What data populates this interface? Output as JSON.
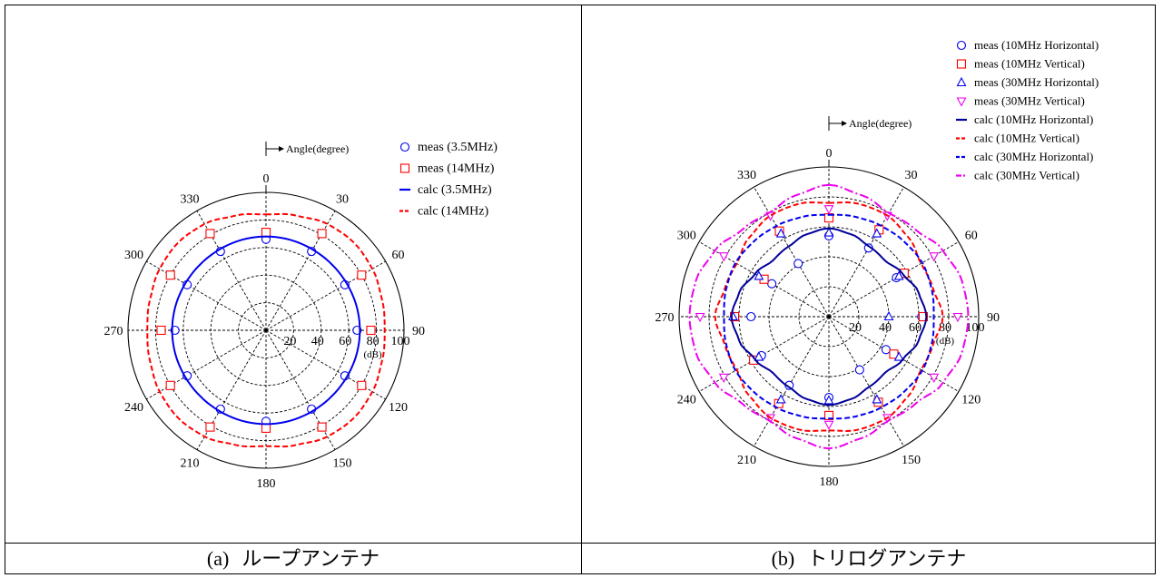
{
  "chart_data": [
    {
      "type": "polar",
      "panel_label": "(a)",
      "caption": "ループアンテナ",
      "angle_axis_label": "Angle(degree)",
      "angle_ticks": [
        "0",
        "30",
        "60",
        "90",
        "120",
        "150",
        "180",
        "210",
        "240",
        "270",
        "300",
        "330"
      ],
      "radial_ticks": [
        "20",
        "40",
        "60",
        "80",
        "100"
      ],
      "radial_unit": "(dB)",
      "r_range": [
        0,
        100
      ],
      "legend_position": "top-right",
      "legend": [
        "meas (3.5MHz)",
        "meas (14MHz)",
        "calc (3.5MHz)",
        "calc (14MHz)"
      ],
      "series": [
        {
          "name": "meas (3.5MHz)",
          "kind": "markers",
          "marker": "circle",
          "color": "#0000ee",
          "angles": [
            0,
            30,
            60,
            90,
            120,
            150,
            180,
            210,
            240,
            270,
            300,
            330
          ],
          "r": [
            66,
            66,
            66,
            66,
            66,
            66,
            66,
            66,
            66,
            66,
            66,
            66
          ]
        },
        {
          "name": "meas (14MHz)",
          "kind": "markers",
          "marker": "square",
          "color": "#ff0000",
          "angles": [
            0,
            30,
            60,
            90,
            120,
            150,
            180,
            210,
            240,
            270,
            300,
            330
          ],
          "r": [
            71,
            81,
            80,
            76,
            80,
            81,
            71,
            81,
            80,
            76,
            80,
            81
          ]
        },
        {
          "name": "calc (3.5MHz)",
          "kind": "line",
          "dash": "solid",
          "color": "#0000ee",
          "angles": [
            0,
            45,
            90,
            135,
            180,
            225,
            270,
            315,
            360
          ],
          "r": [
            68,
            67.5,
            68,
            67.5,
            68,
            67.5,
            68,
            67.5,
            68
          ]
        },
        {
          "name": "calc (14MHz)",
          "kind": "line",
          "dash": "dashed",
          "color": "#ff0000",
          "angles": [
            0,
            15,
            30,
            45,
            60,
            75,
            90,
            105,
            120,
            135,
            150,
            165,
            180,
            195,
            210,
            225,
            240,
            255,
            270,
            285,
            300,
            315,
            330,
            345,
            360
          ],
          "r": [
            84,
            86,
            89,
            90,
            89,
            87,
            86,
            87,
            89,
            90,
            89,
            86,
            84,
            86,
            89,
            90,
            89,
            87,
            86,
            87,
            89,
            90,
            89,
            86,
            84
          ]
        }
      ]
    },
    {
      "type": "polar",
      "panel_label": "(b)",
      "caption": "トリログアンテナ",
      "angle_axis_label": "Angle(degree)",
      "angle_ticks": [
        "0",
        "30",
        "60",
        "90",
        "120",
        "150",
        "180",
        "210",
        "240",
        "270",
        "300",
        "330"
      ],
      "radial_ticks": [
        "20",
        "40",
        "60",
        "80",
        "100"
      ],
      "radial_unit": "(dB)",
      "r_range": [
        0,
        100
      ],
      "legend_position": "top-right",
      "legend": [
        "meas (10MHz Horizontal)",
        "meas (10MHz Vertical)",
        "meas (30MHz Horizontal)",
        "meas (30MHz Vertical)",
        "calc (10MHz Horizontal)",
        "calc (10MHz Vertical)",
        "calc (30MHz Horizontal)",
        "calc (30MHz Vertical)"
      ],
      "series": [
        {
          "name": "meas (10MHz Horizontal)",
          "kind": "markers",
          "marker": "circle",
          "color": "#0000ee",
          "angles": [
            0,
            30,
            60,
            90,
            120,
            150,
            180,
            210,
            240,
            270,
            300,
            330
          ],
          "r": [
            54,
            53,
            52,
            62,
            44,
            41,
            54,
            53,
            52,
            52,
            44,
            41
          ]
        },
        {
          "name": "meas (10MHz Vertical)",
          "kind": "markers",
          "marker": "square",
          "color": "#ff0000",
          "angles": [
            0,
            30,
            60,
            90,
            120,
            150,
            180,
            210,
            240,
            270,
            300,
            330
          ],
          "r": [
            66,
            67,
            58,
            63,
            50,
            66,
            66,
            67,
            58,
            63,
            50,
            66
          ]
        },
        {
          "name": "meas (30MHz Horizontal)",
          "kind": "markers",
          "marker": "triangle",
          "color": "#0000ee",
          "angles": [
            0,
            30,
            60,
            90,
            120,
            150,
            180,
            210,
            240,
            270,
            300,
            330
          ],
          "r": [
            56,
            64,
            54,
            40,
            54,
            64,
            56,
            64,
            54,
            64,
            54,
            64
          ]
        },
        {
          "name": "meas (30MHz Vertical)",
          "kind": "markers",
          "marker": "triangle-down",
          "color": "#ee00ee",
          "angles": [
            0,
            30,
            60,
            90,
            120,
            150,
            180,
            210,
            240,
            270,
            300,
            330
          ],
          "r": [
            72,
            78,
            81,
            86,
            81,
            78,
            72,
            78,
            81,
            86,
            81,
            78
          ]
        },
        {
          "name": "calc (10MHz Horizontal)",
          "kind": "line",
          "dash": "solid",
          "color": "#000099",
          "angles": [
            0,
            15,
            30,
            45,
            60,
            75,
            90,
            105,
            120,
            135,
            150,
            165,
            180,
            195,
            210,
            225,
            240,
            255,
            270,
            285,
            300,
            315,
            330,
            345,
            360
          ],
          "r": [
            59,
            57,
            54,
            53,
            57,
            62,
            65,
            62,
            57,
            53,
            54,
            57,
            59,
            57,
            54,
            53,
            57,
            62,
            65,
            62,
            57,
            53,
            54,
            57,
            59
          ]
        },
        {
          "name": "calc (10MHz Vertical)",
          "kind": "line",
          "dash": "dashed",
          "color": "#ff0000",
          "angles": [
            0,
            15,
            30,
            45,
            60,
            75,
            90,
            105,
            120,
            135,
            150,
            165,
            180,
            195,
            210,
            225,
            240,
            255,
            270,
            285,
            300,
            315,
            330,
            345,
            360
          ],
          "r": [
            76,
            78,
            78,
            75,
            71,
            72,
            76,
            72,
            71,
            75,
            78,
            78,
            76,
            78,
            78,
            75,
            71,
            72,
            76,
            72,
            71,
            75,
            78,
            78,
            76
          ]
        },
        {
          "name": "calc (30MHz Horizontal)",
          "kind": "line",
          "dash": "dashed",
          "color": "#0000ee",
          "angles": [
            0,
            15,
            30,
            45,
            60,
            75,
            90,
            105,
            120,
            135,
            150,
            165,
            180,
            195,
            210,
            225,
            240,
            255,
            270,
            285,
            300,
            315,
            330,
            345,
            360
          ],
          "r": [
            68,
            69,
            70,
            71,
            72,
            71,
            70,
            71,
            72,
            71,
            70,
            69,
            68,
            69,
            70,
            71,
            72,
            71,
            70,
            71,
            72,
            71,
            70,
            69,
            68
          ]
        },
        {
          "name": "calc (30MHz Vertical)",
          "kind": "line",
          "dash": "dashdot",
          "color": "#ee00ee",
          "angles": [
            0,
            15,
            30,
            45,
            60,
            75,
            90,
            105,
            120,
            135,
            150,
            165,
            180,
            195,
            210,
            225,
            240,
            255,
            270,
            285,
            300,
            315,
            330,
            345,
            360
          ],
          "r": [
            88,
            84,
            80,
            82,
            88,
            92,
            93,
            92,
            88,
            82,
            80,
            84,
            88,
            84,
            80,
            82,
            88,
            92,
            93,
            92,
            88,
            82,
            80,
            84,
            88
          ]
        }
      ]
    }
  ]
}
